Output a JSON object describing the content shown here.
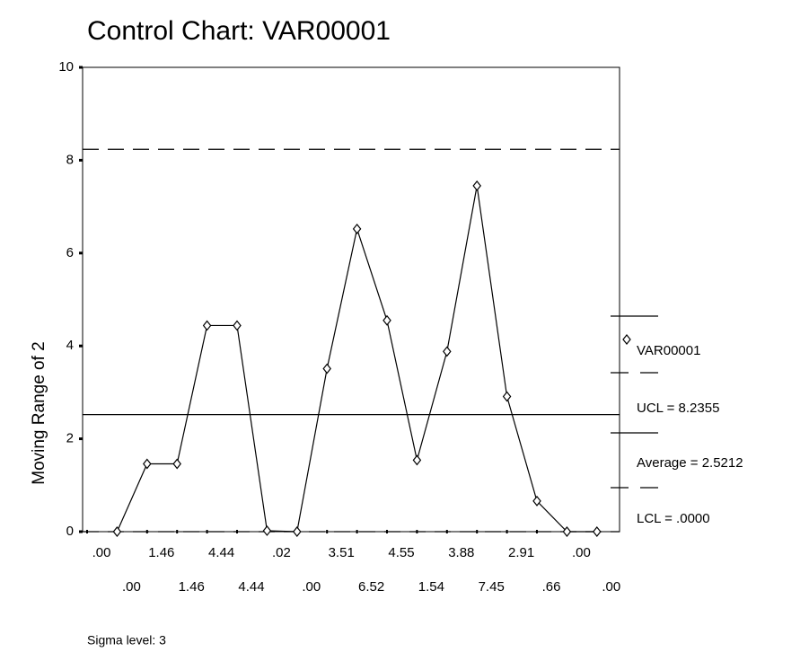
{
  "chart_data": {
    "type": "line",
    "title": "Control Chart: VAR00001",
    "ylabel": "Moving Range of 2",
    "footnote": "Sigma level: 3",
    "categories": [
      ".00",
      ".00",
      "1.46",
      "1.46",
      "4.44",
      "4.44",
      ".02",
      ".00",
      "3.51",
      "6.52",
      "4.55",
      "1.54",
      "3.88",
      "7.45",
      "2.91",
      ".66",
      ".00",
      ".00"
    ],
    "series": [
      {
        "name": "VAR00001",
        "color": "#000000",
        "values": [
          null,
          0,
          1.46,
          1.46,
          4.44,
          4.44,
          0.02,
          0,
          3.51,
          6.52,
          4.55,
          1.54,
          3.88,
          7.45,
          2.91,
          0.66,
          0,
          0
        ]
      }
    ],
    "control_lines": [
      {
        "name": "UCL = 8.2355",
        "value": 8.2355,
        "style": "dashed"
      },
      {
        "name": "Average = 2.5212",
        "value": 2.5212,
        "style": "solid"
      },
      {
        "name": "LCL = .0000",
        "value": 0,
        "style": "dashed"
      }
    ],
    "ylim": [
      0,
      10
    ],
    "yticks": [
      0,
      2,
      4,
      6,
      8,
      10
    ]
  }
}
